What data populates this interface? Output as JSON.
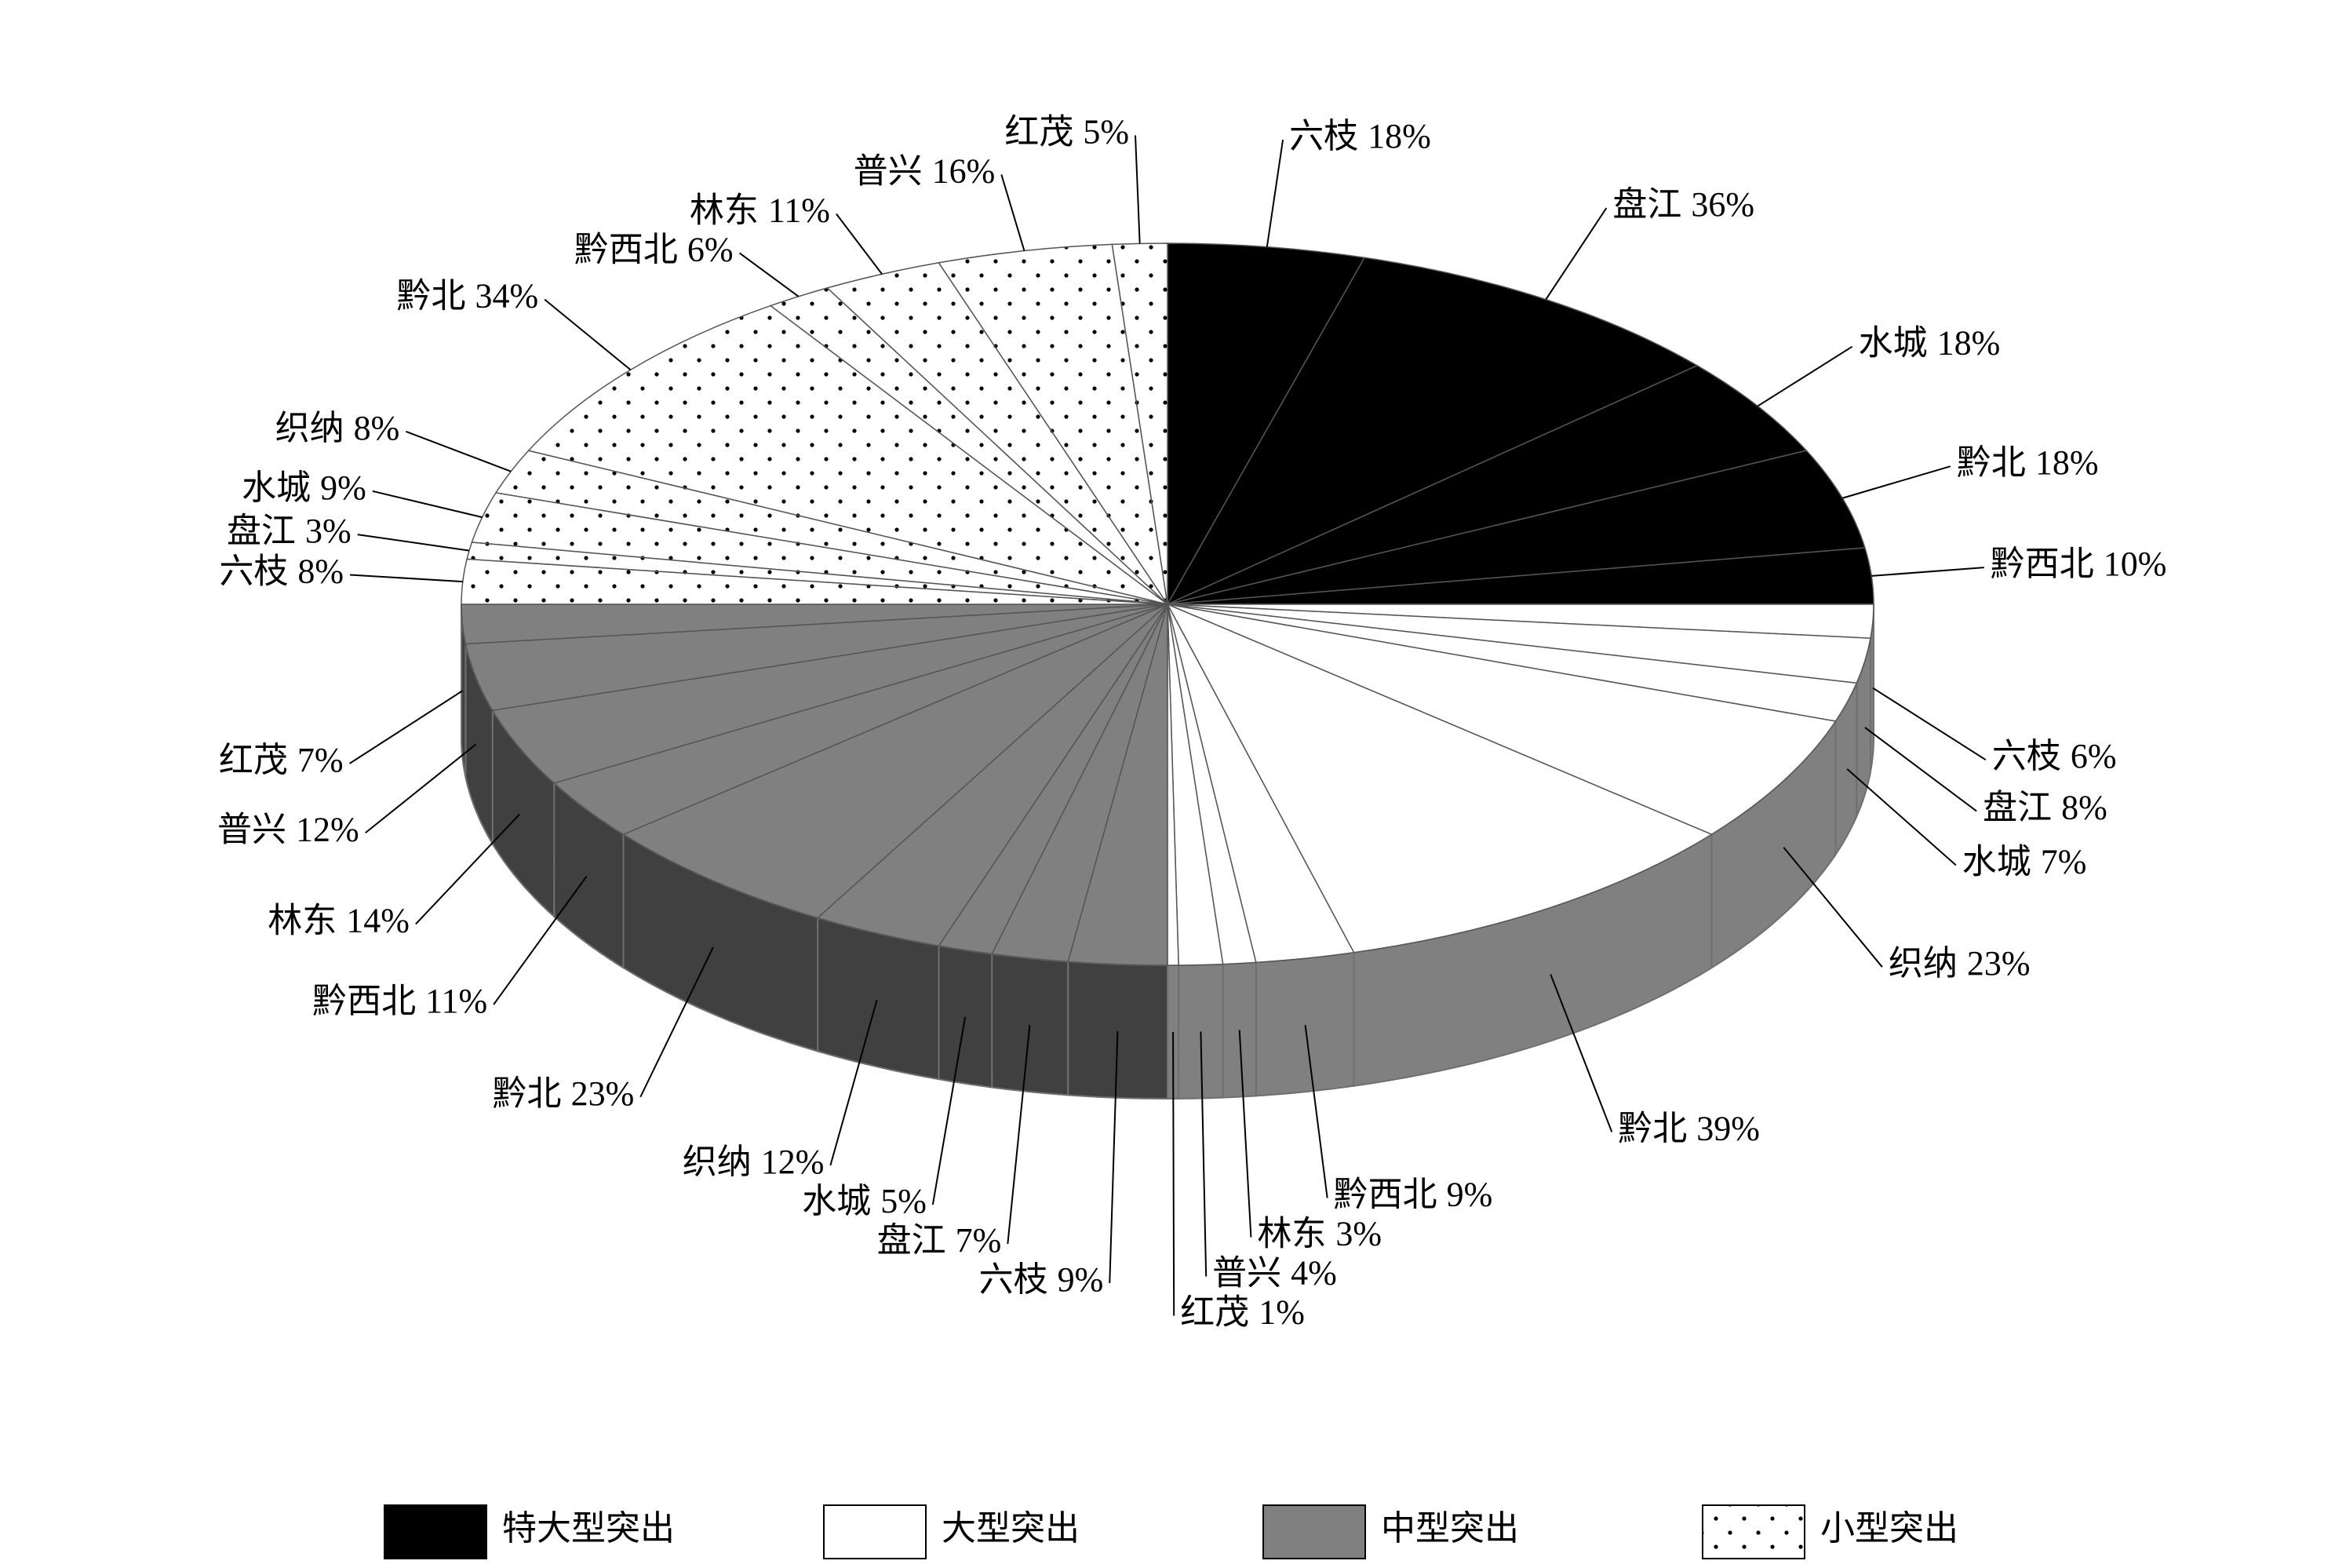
{
  "chart_data": {
    "type": "pie",
    "legend": "bottom",
    "series": [
      {
        "name": "特大型突出",
        "color": "#000000",
        "categories": [
          "六枝",
          "盘江",
          "水城",
          "黔北",
          "黔西北"
        ],
        "values": [
          18,
          36,
          18,
          18,
          10
        ],
        "value_labels": [
          "18%",
          "36%",
          "18%",
          "18%",
          "10%"
        ]
      },
      {
        "name": "大型突出",
        "color": "#ffffff",
        "categories": [
          "六枝",
          "盘江",
          "水城",
          "织纳",
          "黔北",
          "黔西北",
          "林东",
          "普兴",
          "红茂"
        ],
        "values": [
          6,
          8,
          7,
          23,
          39,
          9,
          3,
          4,
          1
        ],
        "value_labels": [
          "6%",
          "8%",
          "7%",
          "23%",
          "39%",
          "9%",
          "3%",
          "4%",
          "1%"
        ]
      },
      {
        "name": "中型突出",
        "color": "#808080",
        "categories": [
          "六枝",
          "盘江",
          "水城",
          "织纳",
          "黔北",
          "黔西北",
          "林东",
          "普兴",
          "红茂"
        ],
        "values": [
          9,
          7,
          5,
          12,
          23,
          11,
          14,
          12,
          7
        ],
        "value_labels": [
          "9%",
          "7%",
          "5%",
          "12%",
          "23%",
          "11%",
          "14%",
          "12%",
          "7%"
        ]
      },
      {
        "name": "小型突出",
        "color": "#ffffff",
        "pattern": "dots",
        "categories": [
          "六枝",
          "盘江",
          "水城",
          "织纳",
          "黔北",
          "黔西北",
          "林东",
          "普兴",
          "红茂"
        ],
        "values": [
          8,
          3,
          9,
          8,
          34,
          6,
          11,
          16,
          5
        ],
        "value_labels": [
          "8%",
          "3%",
          "9%",
          "8%",
          "34%",
          "6%",
          "11%",
          "16%",
          "5%"
        ]
      }
    ]
  }
}
